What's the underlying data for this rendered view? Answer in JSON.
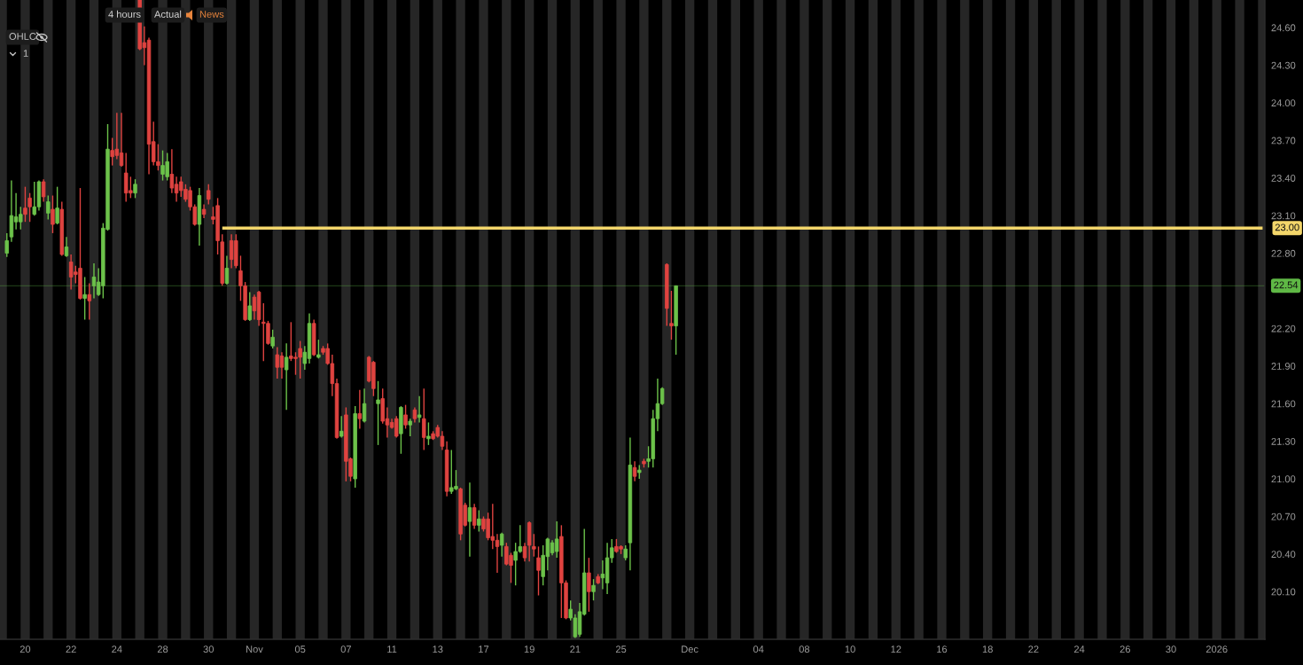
{
  "chart_data": {
    "type": "candlestick",
    "annotations": [
      "4 hours",
      "Actual",
      "News",
      "OHLC",
      "1"
    ],
    "categories": [
      null,
      null,
      null,
      null,
      null,
      "20",
      null,
      null,
      null,
      null,
      null,
      null,
      null,
      null,
      null,
      "22",
      null,
      null,
      null,
      null,
      null,
      null,
      null,
      null,
      null,
      "24",
      null,
      null,
      null,
      null,
      null,
      null,
      null,
      null,
      null,
      "28",
      null,
      null,
      null,
      null,
      null,
      null,
      null,
      null,
      null,
      "30",
      null,
      null,
      null,
      null,
      null,
      null,
      null,
      null,
      null,
      "Nov",
      null,
      null,
      null,
      null,
      null,
      null,
      null,
      null,
      null,
      "05",
      null,
      null,
      null,
      null,
      null,
      null,
      null,
      null,
      null,
      "07",
      null,
      null,
      null,
      null,
      null,
      null,
      null,
      null,
      null,
      "11",
      null,
      null,
      null,
      null,
      null,
      null,
      null,
      null,
      null,
      "13",
      null,
      null,
      null,
      null,
      null,
      null,
      null,
      null,
      null,
      "17",
      null,
      null,
      null,
      null,
      null,
      null,
      null,
      null,
      null,
      "19",
      null,
      null,
      null,
      null,
      null,
      null,
      null,
      null,
      null,
      "21",
      null,
      null,
      null,
      null,
      null,
      null,
      null,
      null,
      null,
      "25",
      null,
      null,
      null,
      null,
      null,
      null,
      null,
      null,
      null,
      null,
      null,
      null,
      null,
      null,
      "Dec",
      null,
      null,
      null,
      null,
      null,
      null,
      null,
      null,
      null,
      null,
      null,
      null,
      null,
      null,
      "04",
      null,
      null,
      null,
      null,
      null,
      null,
      null,
      null,
      null,
      "08",
      null,
      null,
      null,
      null,
      null,
      null,
      null,
      null,
      null,
      "10",
      null,
      null,
      null,
      null,
      null,
      null,
      null,
      null,
      null,
      "12",
      null,
      null,
      null,
      null,
      null,
      null,
      null,
      null,
      null,
      "16",
      null,
      null,
      null,
      null,
      null,
      null,
      null,
      null,
      null,
      "18",
      null,
      null,
      null,
      null,
      null,
      null,
      null,
      null,
      null,
      "22",
      null,
      null,
      null,
      null,
      null,
      null,
      null,
      null,
      null,
      "24",
      null,
      null,
      null,
      null,
      null,
      null,
      null,
      null,
      null,
      "26",
      null,
      null,
      null,
      null,
      null,
      null,
      null,
      null,
      null,
      "30",
      null,
      null,
      null,
      null,
      null,
      null,
      null,
      null,
      null,
      "2026",
      null,
      null,
      null,
      null,
      null,
      null,
      null,
      null,
      null,
      null
    ],
    "ohlc": [
      null,
      [
        22.8,
        22.96,
        22.77,
        22.9
      ],
      [
        22.93,
        23.38,
        22.89,
        23.1
      ],
      [
        23.05,
        23.28,
        22.99,
        23.09
      ],
      [
        23.05,
        23.17,
        22.99,
        23.11
      ],
      [
        23.16,
        23.33,
        23.05,
        23.11
      ],
      [
        23.24,
        23.28,
        23.05,
        23.17
      ],
      [
        23.11,
        23.37,
        23.1,
        23.17
      ],
      [
        23.17,
        23.38,
        23.14,
        23.37
      ],
      [
        23.37,
        23.39,
        23.21,
        23.25
      ],
      [
        23.12,
        23.26,
        23.07,
        23.21
      ],
      [
        23.15,
        23.26,
        22.96,
        23.03
      ],
      [
        23.04,
        23.33,
        23.03,
        23.16
      ],
      [
        23.15,
        23.21,
        22.78,
        22.79
      ],
      [
        22.78,
        22.93,
        22.77,
        22.85
      ],
      [
        22.73,
        22.79,
        22.51,
        22.61
      ],
      [
        22.65,
        22.7,
        22.56,
        22.63
      ],
      [
        22.68,
        23.32,
        22.43,
        22.44
      ],
      [
        22.44,
        22.61,
        22.27,
        22.47
      ],
      [
        22.47,
        22.56,
        22.27,
        22.42
      ],
      [
        22.54,
        22.72,
        22.44,
        22.61
      ],
      [
        22.47,
        22.68,
        22.46,
        22.57
      ],
      [
        22.54,
        23.04,
        22.44,
        23.0
      ],
      [
        22.99,
        23.83,
        22.98,
        23.63
      ],
      [
        23.62,
        23.72,
        23.5,
        23.57
      ],
      [
        23.63,
        23.92,
        23.55,
        23.58
      ],
      [
        23.6,
        23.92,
        23.49,
        23.5
      ],
      [
        23.44,
        23.6,
        23.21,
        23.28
      ],
      [
        23.3,
        23.41,
        23.24,
        23.28
      ],
      [
        23.28,
        23.39,
        23.24,
        23.35
      ],
      [
        24.82,
        24.82,
        24.42,
        24.43
      ],
      [
        24.48,
        24.61,
        24.3,
        24.44
      ],
      [
        24.5,
        24.52,
        23.43,
        23.67
      ],
      [
        23.69,
        23.85,
        23.5,
        23.53
      ],
      [
        23.53,
        23.67,
        23.46,
        23.5
      ],
      [
        23.43,
        23.62,
        23.38,
        23.5
      ],
      [
        23.41,
        23.6,
        23.38,
        23.53
      ],
      [
        23.43,
        23.63,
        23.28,
        23.32
      ],
      [
        23.35,
        23.41,
        23.21,
        23.28
      ],
      [
        23.37,
        23.41,
        23.25,
        23.3
      ],
      [
        23.31,
        23.35,
        23.21,
        23.23
      ],
      [
        23.3,
        23.33,
        23.14,
        23.17
      ],
      [
        23.17,
        23.19,
        23.02,
        23.03
      ],
      [
        23.03,
        23.32,
        22.86,
        23.26
      ],
      [
        23.15,
        23.19,
        23.08,
        23.11
      ],
      [
        23.3,
        23.35,
        23.19,
        23.23
      ],
      [
        23.09,
        23.17,
        23.03,
        23.07
      ],
      [
        23.18,
        23.24,
        22.79,
        22.9
      ],
      [
        22.89,
        22.95,
        22.54,
        22.56
      ],
      [
        22.56,
        22.78,
        22.55,
        22.68
      ],
      [
        22.9,
        22.95,
        22.68,
        22.75
      ],
      [
        22.9,
        22.95,
        22.68,
        22.7
      ],
      [
        22.66,
        22.78,
        22.42,
        22.54
      ],
      [
        22.54,
        22.57,
        22.26,
        22.27
      ],
      [
        22.27,
        22.49,
        22.26,
        22.38
      ],
      [
        22.45,
        22.47,
        22.27,
        22.34
      ],
      [
        22.49,
        22.5,
        22.22,
        22.27
      ],
      [
        22.25,
        22.4,
        21.94,
        22.24
      ],
      [
        22.24,
        22.26,
        22.07,
        22.08
      ],
      [
        22.06,
        22.19,
        22.04,
        22.13
      ],
      [
        21.99,
        22.05,
        21.8,
        21.89
      ],
      [
        21.98,
        22.01,
        21.8,
        21.89
      ],
      [
        21.87,
        22.08,
        21.55,
        21.97
      ],
      [
        21.98,
        22.25,
        21.94,
        21.96
      ],
      [
        21.97,
        22.01,
        21.83,
        21.96
      ],
      [
        22.04,
        22.1,
        21.8,
        21.97
      ],
      [
        21.92,
        22.06,
        21.87,
        22.01
      ],
      [
        21.96,
        22.32,
        21.92,
        22.24
      ],
      [
        22.24,
        22.27,
        21.98,
        21.99
      ],
      [
        21.97,
        22.11,
        21.96,
        21.99
      ],
      [
        22.04,
        22.06,
        21.99,
        22.01
      ],
      [
        22.04,
        22.08,
        21.91,
        21.92
      ],
      [
        21.92,
        21.99,
        21.66,
        21.76
      ],
      [
        21.76,
        21.8,
        21.32,
        21.33
      ],
      [
        21.34,
        21.5,
        21.33,
        21.38
      ],
      [
        21.51,
        21.57,
        20.98,
        21.14
      ],
      [
        21.16,
        21.17,
        20.98,
        21.02
      ],
      [
        21.0,
        21.58,
        20.93,
        21.52
      ],
      [
        21.52,
        21.71,
        21.4,
        21.48
      ],
      [
        21.46,
        21.72,
        21.45,
        21.6
      ],
      [
        21.97,
        21.98,
        21.77,
        21.78
      ],
      [
        21.93,
        21.94,
        21.66,
        21.72
      ],
      [
        21.6,
        21.78,
        21.27,
        21.63
      ],
      [
        21.64,
        21.72,
        21.44,
        21.46
      ],
      [
        21.48,
        21.57,
        21.33,
        21.43
      ],
      [
        21.45,
        21.48,
        21.4,
        21.41
      ],
      [
        21.48,
        21.5,
        21.33,
        21.34
      ],
      [
        21.36,
        21.58,
        21.2,
        21.57
      ],
      [
        21.51,
        21.59,
        21.4,
        21.43
      ],
      [
        21.43,
        21.48,
        21.34,
        21.46
      ],
      [
        21.55,
        21.57,
        21.45,
        21.48
      ],
      [
        21.49,
        21.66,
        21.45,
        21.51
      ],
      [
        21.48,
        21.72,
        21.23,
        21.33
      ],
      [
        21.32,
        21.45,
        21.27,
        21.34
      ],
      [
        21.36,
        21.38,
        21.31,
        21.32
      ],
      [
        21.41,
        21.43,
        21.33,
        21.34
      ],
      [
        21.34,
        21.38,
        21.23,
        21.26
      ],
      [
        21.23,
        21.3,
        20.86,
        20.9
      ],
      [
        20.9,
        21.23,
        20.88,
        20.93
      ],
      [
        20.92,
        21.07,
        20.91,
        20.94
      ],
      [
        20.92,
        20.93,
        20.51,
        20.56
      ],
      [
        20.79,
        20.81,
        20.62,
        20.63
      ],
      [
        20.66,
        20.97,
        20.38,
        20.77
      ],
      [
        20.77,
        20.8,
        20.6,
        20.63
      ],
      [
        20.63,
        20.75,
        20.58,
        20.68
      ],
      [
        20.68,
        20.7,
        20.58,
        20.6
      ],
      [
        20.68,
        20.73,
        20.51,
        20.53
      ],
      [
        20.54,
        20.8,
        20.44,
        20.51
      ],
      [
        20.51,
        20.56,
        20.25,
        20.46
      ],
      [
        20.47,
        20.57,
        20.38,
        20.56
      ],
      [
        20.46,
        20.49,
        20.31,
        20.32
      ],
      [
        20.39,
        20.41,
        20.17,
        20.31
      ],
      [
        20.35,
        20.49,
        20.15,
        20.42
      ],
      [
        20.42,
        20.63,
        20.41,
        20.46
      ],
      [
        20.46,
        20.49,
        20.34,
        20.37
      ],
      [
        20.65,
        20.66,
        20.34,
        20.47
      ],
      [
        20.46,
        20.56,
        20.38,
        20.44
      ],
      [
        20.37,
        20.46,
        20.07,
        20.27
      ],
      [
        20.22,
        20.47,
        20.15,
        20.39
      ],
      [
        20.38,
        20.53,
        20.27,
        20.52
      ],
      [
        20.41,
        20.51,
        20.39,
        20.49
      ],
      [
        20.42,
        20.66,
        20.37,
        20.52
      ],
      [
        20.54,
        20.63,
        19.89,
        20.17
      ],
      [
        20.17,
        20.19,
        19.88,
        19.89
      ],
      [
        19.89,
        20.03,
        19.87,
        19.96
      ],
      [
        19.74,
        19.92,
        19.73,
        19.89
      ],
      [
        19.76,
        20.01,
        19.74,
        19.94
      ],
      [
        19.92,
        20.6,
        19.91,
        20.25
      ],
      [
        20.25,
        20.37,
        19.94,
        20.1
      ],
      [
        20.1,
        20.2,
        20.03,
        20.15
      ],
      [
        20.22,
        20.24,
        20.16,
        20.17
      ],
      [
        20.21,
        20.35,
        20.12,
        20.24
      ],
      [
        20.17,
        20.49,
        20.08,
        20.37
      ],
      [
        20.37,
        20.52,
        20.33,
        20.45
      ],
      [
        20.46,
        20.52,
        20.41,
        20.42
      ],
      [
        20.46,
        20.47,
        20.4,
        20.44
      ],
      [
        20.37,
        20.47,
        20.35,
        20.44
      ],
      [
        20.49,
        21.33,
        20.27,
        21.11
      ],
      [
        21.09,
        21.14,
        20.98,
        21.02
      ],
      [
        21.05,
        21.11,
        21.0,
        21.07
      ],
      [
        21.14,
        21.16,
        21.09,
        21.12
      ],
      [
        21.14,
        21.26,
        21.09,
        21.16
      ],
      [
        21.16,
        21.55,
        21.09,
        21.48
      ],
      [
        21.48,
        21.8,
        21.38,
        21.6
      ],
      [
        21.6,
        21.73,
        21.59,
        21.72
      ],
      [
        22.71,
        22.72,
        22.22,
        22.36
      ],
      [
        22.24,
        22.5,
        22.11,
        22.22
      ],
      [
        22.22,
        22.54,
        21.99,
        22.54
      ],
      null,
      null,
      null,
      null,
      null,
      null,
      null,
      null,
      null,
      null,
      null,
      null,
      null,
      null,
      null,
      null,
      null,
      null,
      null,
      null,
      null,
      null,
      null,
      null,
      null,
      null,
      null,
      null,
      null,
      null,
      null,
      null,
      null,
      null,
      null,
      null,
      null,
      null,
      null,
      null,
      null,
      null,
      null,
      null,
      null,
      null,
      null,
      null,
      null,
      null,
      null,
      null,
      null,
      null,
      null,
      null,
      null,
      null,
      null,
      null,
      null,
      null,
      null,
      null,
      null,
      null,
      null,
      null,
      null,
      null,
      null,
      null,
      null,
      null,
      null,
      null,
      null,
      null,
      null,
      null,
      null,
      null,
      null,
      null,
      null,
      null,
      null,
      null,
      null,
      null,
      null,
      null,
      null,
      null,
      null,
      null,
      null,
      null,
      null,
      null,
      null,
      null,
      null,
      null,
      null,
      null,
      null,
      null,
      null,
      null,
      null,
      null,
      null,
      null,
      null,
      null,
      null,
      null,
      null,
      null,
      null,
      null,
      null,
      null,
      null,
      null,
      null,
      null
    ],
    "colors": [
      null,
      "#6cc24a",
      "#6cc24a",
      "#6cc24a",
      "#6cc24a",
      "#df4340",
      "#df4340",
      "#6cc24a",
      "#6cc24a",
      "#df4340",
      "#6cc24a",
      "#df4340",
      "#6cc24a",
      "#df4340",
      "#6cc24a",
      "#df4340",
      "#df4340",
      "#df4340",
      "#6cc24a",
      "#df4340",
      "#6cc24a",
      "#6cc24a",
      "#6cc24a",
      "#6cc24a",
      "#df4340",
      "#df4340",
      "#df4340",
      "#df4340",
      "#df4340",
      "#6cc24a",
      "#df4340",
      "#df4340",
      "#df4340",
      "#df4340",
      "#df4340",
      "#6cc24a",
      "#6cc24a",
      "#df4340",
      "#df4340",
      "#df4340",
      "#df4340",
      "#df4340",
      "#df4340",
      "#6cc24a",
      "#df4340",
      "#df4340",
      "#df4340",
      "#df4340",
      "#df4340",
      "#6cc24a",
      "#df4340",
      "#df4340",
      "#df4340",
      "#df4340",
      "#6cc24a",
      "#df4340",
      "#df4340",
      "#df4340",
      "#df4340",
      "#6cc24a",
      "#df4340",
      "#df4340",
      "#6cc24a",
      "#df4340",
      "#df4340",
      "#df4340",
      "#6cc24a",
      "#6cc24a",
      "#df4340",
      "#6cc24a",
      "#df4340",
      "#df4340",
      "#df4340",
      "#df4340",
      "#6cc24a",
      "#df4340",
      "#df4340",
      "#6cc24a",
      "#df4340",
      "#6cc24a",
      "#df4340",
      "#df4340",
      "#6cc24a",
      "#df4340",
      "#df4340",
      "#df4340",
      "#df4340",
      "#6cc24a",
      "#df4340",
      "#6cc24a",
      "#df4340",
      "#6cc24a",
      "#df4340",
      "#6cc24a",
      "#df4340",
      "#df4340",
      "#df4340",
      "#df4340",
      "#6cc24a",
      "#6cc24a",
      "#df4340",
      "#df4340",
      "#6cc24a",
      "#df4340",
      "#6cc24a",
      "#df4340",
      "#df4340",
      "#df4340",
      "#df4340",
      "#6cc24a",
      "#df4340",
      "#df4340",
      "#6cc24a",
      "#6cc24a",
      "#df4340",
      "#df4340",
      "#df4340",
      "#df4340",
      "#6cc24a",
      "#6cc24a",
      "#6cc24a",
      "#6cc24a",
      "#df4340",
      "#df4340",
      "#6cc24a",
      "#6cc24a",
      "#6cc24a",
      "#6cc24a",
      "#df4340",
      "#6cc24a",
      "#df4340",
      "#6cc24a",
      "#6cc24a",
      "#6cc24a",
      "#df4340",
      "#df4340",
      "#6cc24a",
      "#6cc24a",
      "#df4340",
      "#6cc24a",
      "#df4340",
      "#6cc24a",
      "#6cc24a",
      "#6cc24a",
      "#6cc24a",
      "#df4340",
      "#df4340",
      "#6cc24a",
      null,
      null,
      null,
      null,
      null,
      null,
      null,
      null,
      null,
      null,
      null,
      null,
      null,
      null,
      null,
      null,
      null,
      null,
      null,
      null,
      null,
      null,
      null,
      null,
      null,
      null,
      null,
      null,
      null,
      null,
      null,
      null,
      null,
      null,
      null,
      null,
      null,
      null,
      null,
      null,
      null,
      null,
      null,
      null,
      null,
      null,
      null,
      null,
      null,
      null,
      null,
      null,
      null,
      null,
      null,
      null,
      null,
      null,
      null,
      null,
      null,
      null,
      null,
      null,
      null,
      null,
      null,
      null,
      null,
      null,
      null,
      null,
      null,
      null,
      null,
      null,
      null,
      null,
      null,
      null,
      null,
      null,
      null,
      null,
      null,
      null,
      null,
      null,
      null,
      null,
      null,
      null,
      null,
      null,
      null,
      null,
      null,
      null,
      null,
      null,
      null,
      null,
      null,
      null,
      null,
      null,
      null,
      null,
      null,
      null,
      null,
      null,
      null,
      null,
      null,
      null,
      null,
      null,
      null,
      null,
      null,
      null,
      null,
      null,
      null,
      null,
      null,
      null
    ],
    "series": [
      {
        "type": "line",
        "color": "#f3d66a",
        "values": [
          null,
          null,
          null,
          null,
          null,
          null,
          null,
          null,
          null,
          null,
          null,
          null,
          null,
          null,
          null,
          null,
          null,
          null,
          null,
          null,
          null,
          null,
          null,
          null,
          null,
          null,
          null,
          null,
          null,
          null,
          null,
          null,
          null,
          null,
          null,
          null,
          null,
          null,
          null,
          null,
          null,
          null,
          null,
          null,
          null,
          null,
          null,
          null,
          23,
          23,
          23,
          23,
          23,
          23,
          23,
          23,
          23,
          23,
          23,
          23,
          23,
          23,
          23,
          23,
          23,
          23,
          23,
          23,
          23,
          23,
          23,
          23,
          23,
          23,
          23,
          23,
          23,
          23,
          23,
          23,
          23,
          23,
          23,
          23,
          23,
          23,
          23,
          23,
          23,
          23,
          23,
          23,
          23,
          23,
          23,
          23,
          23,
          23,
          23,
          23,
          23,
          23,
          23,
          23,
          23,
          23,
          23,
          23,
          23,
          23,
          23,
          23,
          23,
          23,
          23,
          23,
          23,
          23,
          23,
          23,
          23,
          23,
          23,
          23,
          23,
          23,
          23,
          23,
          23,
          23,
          23,
          23,
          23,
          23,
          23,
          23,
          23,
          23,
          23,
          23,
          23,
          23,
          23,
          23,
          23,
          23,
          23,
          23,
          23,
          23,
          23,
          23,
          23,
          23,
          23,
          23,
          23,
          23,
          23,
          23,
          23,
          23,
          23,
          23,
          23,
          23,
          23,
          23,
          23,
          23,
          23,
          23,
          23,
          23,
          23,
          23,
          23,
          23,
          23,
          23,
          23,
          23,
          23,
          23,
          23,
          23,
          23,
          23,
          23,
          23,
          23,
          23,
          23,
          23,
          23,
          23,
          23,
          23,
          23,
          23,
          23,
          23,
          23,
          23,
          23,
          23,
          23,
          23,
          23,
          23,
          23,
          23,
          23,
          23,
          23,
          23,
          23,
          23,
          23,
          23,
          23,
          23,
          23,
          23,
          23,
          23,
          23,
          23,
          23,
          23,
          23,
          23,
          23,
          23,
          23,
          23,
          23,
          23,
          23,
          23,
          23,
          23,
          23,
          23,
          23,
          23,
          23,
          23,
          23,
          23,
          23,
          23,
          23,
          23,
          23,
          23,
          23,
          23,
          23,
          23,
          23,
          23,
          23,
          23,
          23,
          23,
          23,
          23,
          23,
          23,
          23,
          23,
          23,
          23,
          23,
          23
        ],
        "value_labels": [
          null,
          null,
          null,
          null,
          null,
          null,
          null,
          null,
          null,
          null,
          null,
          null,
          null,
          null,
          null,
          null,
          null,
          null,
          null,
          null,
          null,
          null,
          null,
          null,
          null,
          null,
          null,
          null,
          null,
          null,
          null,
          null,
          null,
          null,
          null,
          null,
          null,
          null,
          null,
          null,
          null,
          null,
          null,
          null,
          null,
          null,
          null,
          null,
          null,
          null,
          null,
          null,
          null,
          null,
          null,
          null,
          null,
          null,
          null,
          null,
          null,
          null,
          null,
          null,
          null,
          null,
          null,
          null,
          null,
          null,
          null,
          null,
          null,
          null,
          null,
          null,
          null,
          null,
          null,
          null,
          null,
          null,
          null,
          null,
          null,
          null,
          null,
          null,
          null,
          null,
          null,
          null,
          null,
          null,
          null,
          null,
          null,
          null,
          null,
          null,
          null,
          null,
          null,
          null,
          null,
          null,
          null,
          null,
          null,
          null,
          null,
          null,
          null,
          null,
          null,
          null,
          null,
          null,
          null,
          null,
          null,
          null,
          null,
          null,
          null,
          null,
          null,
          null,
          null,
          null,
          null,
          null,
          null,
          null,
          null,
          null,
          null,
          null,
          null,
          null,
          null,
          null,
          null,
          null,
          null,
          null,
          null,
          null,
          null,
          null,
          null,
          null,
          null,
          null,
          null,
          null,
          null,
          null,
          null,
          null,
          null,
          null,
          null,
          null,
          null,
          null,
          null,
          null,
          null,
          null,
          null,
          null,
          null,
          null,
          null,
          null,
          null,
          null,
          null,
          null,
          null,
          null,
          null,
          null,
          null,
          null,
          null,
          null,
          null,
          null,
          null,
          null,
          null,
          null,
          null,
          null,
          null,
          null,
          null,
          null,
          null,
          null,
          null,
          null,
          null,
          null,
          null,
          null,
          null,
          null,
          null,
          null,
          null,
          null,
          null,
          null,
          null,
          null,
          null,
          null,
          null,
          null,
          null,
          null,
          null,
          null,
          null,
          null,
          null,
          null,
          null,
          null,
          null,
          null,
          null,
          null,
          null,
          null,
          null,
          null,
          null,
          null,
          null,
          null,
          null,
          null,
          null,
          null,
          null,
          null,
          null,
          null,
          null,
          null,
          null,
          null,
          null,
          null,
          null,
          null,
          null,
          null,
          null,
          null,
          null,
          null,
          null,
          null,
          null,
          null,
          null,
          null,
          null,
          null,
          null,
          "23.00"
        ]
      }
    ],
    "ref_lines": [
      {
        "axis": "y",
        "value": 22.54,
        "label": "22.54",
        "color": "#5fb845"
      }
    ],
    "ylim": [
      19.72,
      24.82
    ],
    "yticks": [
      {
        "value": 24.6,
        "label": "24.60"
      },
      {
        "value": 24.3,
        "label": "24.30"
      },
      {
        "value": 24.0,
        "label": "24.00"
      },
      {
        "value": 23.7,
        "label": "23.70"
      },
      {
        "value": 23.4,
        "label": "23.40"
      },
      {
        "value": 23.1,
        "label": "23.10"
      },
      {
        "value": 22.8,
        "label": "22.80"
      },
      {
        "value": 22.2,
        "label": "22.20"
      },
      {
        "value": 21.9,
        "label": "21.90"
      },
      {
        "value": 21.6,
        "label": "21.60"
      },
      {
        "value": 21.3,
        "label": "21.30"
      },
      {
        "value": 21.0,
        "label": "21.00"
      },
      {
        "value": 20.7,
        "label": "20.70"
      },
      {
        "value": 20.4,
        "label": "20.40"
      },
      {
        "value": 20.1,
        "label": "20.10"
      }
    ]
  }
}
